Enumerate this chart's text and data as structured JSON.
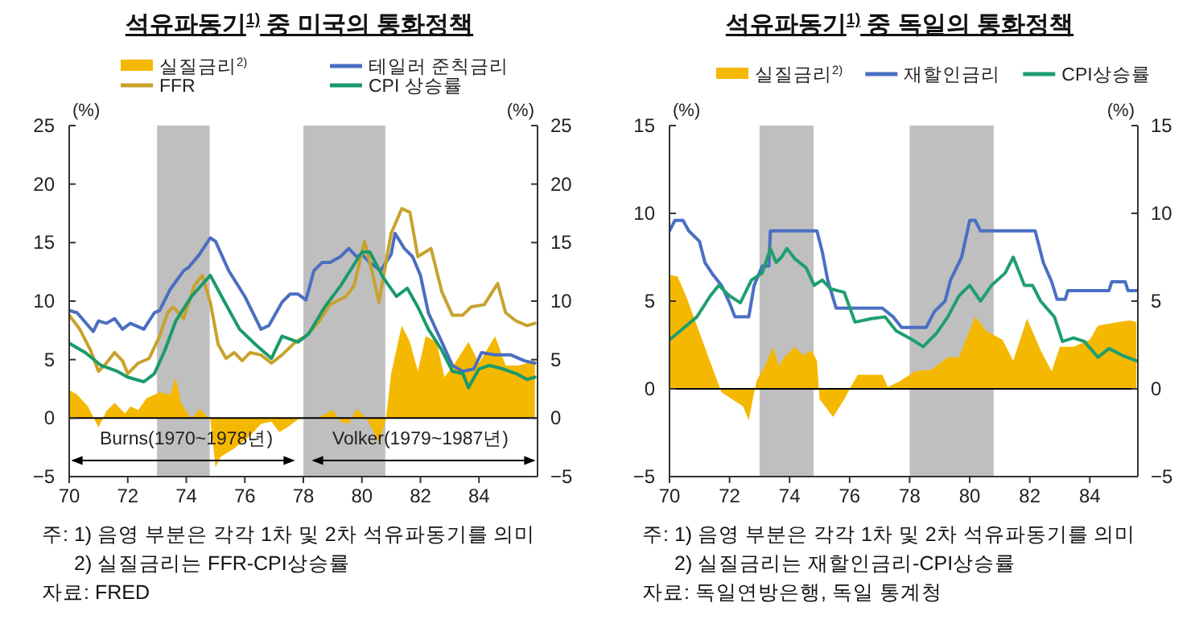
{
  "chart_data": [
    {
      "type": "line",
      "title": "석유파동기$^{1)}$ 중 미국의 통화정책",
      "ylabel": "(%)",
      "y2label": "(%)",
      "xlim": [
        70,
        86
      ],
      "xticks": [
        70,
        72,
        74,
        76,
        78,
        80,
        82,
        84
      ],
      "ylim": [
        -5,
        25
      ],
      "yticks": [
        {
          "value": -5,
          "label": "−5"
        },
        0,
        5,
        10,
        15,
        20,
        25
      ],
      "y2lim": [
        -5,
        25
      ],
      "y2ticks": [
        {
          "value": -5,
          "label": "−5"
        },
        0,
        5,
        10,
        15,
        20,
        25
      ],
      "grid": false,
      "legend": "top",
      "bands": [
        {
          "axis": "x",
          "from": 73,
          "to": 74.8,
          "color": "#bfbfbf"
        },
        {
          "axis": "x",
          "from": 78,
          "to": 80.8,
          "color": "#bfbfbf"
        }
      ],
      "ref_lines": [
        {
          "axis": "y",
          "value": 0,
          "color": "#000000"
        }
      ],
      "series": [
        {
          "name": "실질금리$^{2)}$",
          "type": "area",
          "color": "#f5b800",
          "x": [
            70.0,
            70.27,
            70.64,
            71.0,
            71.27,
            71.55,
            71.91,
            72.09,
            72.36,
            72.64,
            73.09,
            73.45,
            73.64,
            73.82,
            74.18,
            74.45,
            74.82,
            75.0,
            75.18,
            75.64,
            76.18,
            76.55,
            76.91,
            77.18,
            77.45,
            77.82,
            78.55,
            79.0,
            79.27,
            79.55,
            79.82,
            80.18,
            80.58,
            80.82,
            81.0,
            81.36,
            81.64,
            81.91,
            82.18,
            82.55,
            82.82,
            83.18,
            83.64,
            84.0,
            84.55,
            84.91,
            85.36,
            85.91
          ],
          "values": [
            2.4,
            2.0,
            1.0,
            -0.8,
            0.6,
            1.3,
            0.4,
            1.0,
            0.7,
            1.7,
            2.2,
            2.0,
            3.5,
            1.3,
            -0.1,
            0.8,
            -0.1,
            -4.2,
            -3.3,
            -2.6,
            -1.5,
            -0.5,
            -0.3,
            -1.2,
            -0.8,
            -0.1,
            0.1,
            0.7,
            -0.3,
            -0.5,
            0.8,
            -0.1,
            -2.1,
            -0.1,
            3.8,
            7.9,
            6.5,
            4.0,
            7.0,
            6.5,
            3.5,
            4.7,
            6.5,
            4.7,
            7.0,
            4.5,
            4.5,
            4.9
          ]
        },
        {
          "name": "테일러 준칙금리",
          "type": "line",
          "color": "#4a6fc0",
          "x": [
            70.0,
            70.27,
            70.82,
            71.0,
            71.27,
            71.55,
            71.82,
            72.09,
            72.55,
            72.91,
            73.09,
            73.45,
            73.91,
            74.09,
            74.45,
            74.82,
            75.0,
            75.45,
            76.0,
            76.55,
            76.82,
            77.27,
            77.55,
            77.82,
            78.09,
            78.36,
            78.64,
            78.91,
            79.27,
            79.55,
            79.82,
            80.0,
            80.27,
            80.64,
            81.0,
            81.13,
            81.45,
            81.73,
            82.0,
            82.27,
            82.73,
            83.09,
            83.45,
            83.82,
            84.09,
            84.55,
            85.09,
            85.55,
            85.91
          ],
          "values": [
            9.2,
            9.0,
            7.4,
            8.3,
            8.1,
            8.5,
            7.6,
            8.1,
            7.6,
            9.0,
            9.2,
            11.0,
            12.6,
            12.9,
            14.0,
            15.4,
            15.1,
            12.6,
            10.4,
            7.6,
            7.9,
            9.9,
            10.6,
            10.6,
            10.1,
            12.6,
            13.3,
            13.3,
            13.8,
            14.5,
            13.8,
            14.0,
            13.3,
            12.6,
            14.0,
            15.8,
            14.5,
            13.8,
            12.2,
            9.0,
            6.5,
            4.5,
            4.0,
            4.2,
            5.6,
            5.4,
            5.4,
            4.9,
            4.7
          ]
        },
        {
          "name": "FFR",
          "type": "line",
          "color": "#c8a22c",
          "x": [
            70.0,
            70.36,
            70.73,
            71.0,
            71.27,
            71.55,
            71.82,
            72.0,
            72.36,
            72.73,
            73.09,
            73.36,
            73.55,
            73.91,
            74.27,
            74.55,
            74.82,
            75.09,
            75.36,
            75.64,
            75.91,
            76.18,
            76.55,
            76.91,
            77.27,
            77.73,
            78.09,
            78.55,
            78.91,
            79.45,
            79.73,
            80.09,
            80.36,
            80.58,
            80.82,
            81.0,
            81.36,
            81.64,
            81.91,
            82.36,
            82.73,
            83.09,
            83.45,
            83.73,
            84.18,
            84.64,
            84.91,
            85.27,
            85.64,
            85.91
          ],
          "values": [
            8.8,
            7.6,
            5.8,
            4.0,
            4.7,
            5.6,
            4.9,
            3.8,
            4.7,
            5.1,
            7.0,
            9.0,
            9.5,
            8.5,
            11.3,
            12.2,
            9.9,
            6.3,
            5.1,
            5.6,
            4.9,
            5.6,
            5.4,
            4.7,
            5.4,
            6.5,
            7.0,
            8.3,
            9.7,
            10.4,
            11.3,
            15.1,
            12.4,
            9.9,
            13.3,
            15.8,
            17.9,
            17.6,
            13.8,
            14.5,
            10.8,
            8.8,
            8.8,
            9.5,
            9.7,
            11.5,
            9.0,
            8.3,
            7.9,
            8.1
          ]
        },
        {
          "name": "CPI 상승률",
          "type": "line",
          "color": "#1a9a6a",
          "x": [
            70.0,
            70.55,
            71.09,
            71.64,
            72.0,
            72.55,
            72.91,
            73.27,
            73.64,
            74.18,
            74.82,
            75.27,
            75.82,
            76.36,
            76.91,
            77.27,
            77.82,
            78.18,
            78.73,
            79.27,
            80.0,
            80.27,
            80.73,
            81.18,
            81.55,
            81.91,
            82.27,
            82.73,
            83.09,
            83.45,
            83.64,
            84.0,
            84.36,
            84.82,
            85.27,
            85.64,
            85.91
          ],
          "values": [
            6.4,
            5.6,
            4.5,
            4.0,
            3.5,
            3.1,
            3.8,
            5.8,
            8.3,
            10.4,
            12.2,
            10.1,
            7.6,
            6.3,
            5.1,
            7.0,
            6.5,
            7.2,
            9.5,
            11.3,
            14.2,
            14.2,
            12.0,
            10.4,
            11.1,
            9.5,
            7.6,
            5.8,
            4.0,
            3.8,
            2.6,
            4.2,
            4.5,
            4.2,
            3.8,
            3.3,
            3.5
          ]
        }
      ],
      "annotations": [
        {
          "text": "Burns(1970~1978년)"
        },
        {
          "text": "Volker(1979~1987년)"
        },
        "주: 1) 음영 부분은 각각 1차 및 2차 석유파동기를 의미",
        "2) 실질금리는 FFR-CPI상승률",
        "자료: FRED"
      ]
    },
    {
      "type": "line",
      "title": "석유파동기$^{1)}$ 중 독일의 통화정책",
      "ylabel": "(%)",
      "y2label": "(%)",
      "xlim": [
        70,
        85.6
      ],
      "xticks": [
        70,
        72,
        74,
        76,
        78,
        80,
        82,
        84
      ],
      "ylim": [
        -5,
        15
      ],
      "yticks": [
        {
          "value": -5,
          "label": "−5"
        },
        0,
        5,
        10,
        15
      ],
      "y2lim": [
        -5,
        15
      ],
      "y2ticks": [
        {
          "value": -5,
          "label": "−5"
        },
        0,
        5,
        10,
        15
      ],
      "grid": false,
      "legend": "top",
      "bands": [
        {
          "axis": "x",
          "from": 73,
          "to": 74.8,
          "color": "#bfbfbf"
        },
        {
          "axis": "x",
          "from": 78,
          "to": 80.8,
          "color": "#bfbfbf"
        }
      ],
      "ref_lines": [
        {
          "axis": "y",
          "value": 0,
          "color": "#000000"
        }
      ],
      "series": [
        {
          "name": "실질금리$^{2)}$",
          "type": "area",
          "color": "#f5b800",
          "x": [
            70.0,
            70.27,
            70.55,
            71.0,
            71.45,
            71.73,
            72.09,
            72.45,
            72.64,
            72.82,
            72.91,
            73.18,
            73.45,
            73.64,
            73.82,
            74.18,
            74.45,
            74.73,
            74.91,
            75.0,
            75.45,
            75.82,
            76.0,
            76.27,
            76.64,
            77.09,
            77.27,
            77.64,
            78.18,
            78.73,
            79.27,
            79.64,
            80.18,
            80.55,
            81.09,
            81.45,
            81.91,
            82.36,
            82.73,
            83.0,
            83.45,
            84.0,
            84.27,
            84.91,
            85.36,
            85.55
          ],
          "values": [
            6.5,
            6.4,
            5.3,
            3.2,
            1.1,
            -0.2,
            -0.6,
            -1.0,
            -1.8,
            -0.2,
            0.5,
            1.3,
            2.4,
            1.3,
            1.8,
            2.4,
            1.9,
            2.2,
            1.6,
            -0.6,
            -1.6,
            -0.6,
            0,
            0.8,
            0.8,
            0.8,
            0.1,
            0.4,
            1.0,
            1.1,
            1.8,
            1.8,
            4.1,
            3.3,
            2.8,
            1.6,
            4.0,
            2.2,
            1.0,
            2.4,
            2.4,
            2.8,
            3.6,
            3.8,
            3.9,
            3.8
          ]
        },
        {
          "name": "재할인금리",
          "type": "line",
          "color": "#4a6fc4",
          "x": [
            70.0,
            70.18,
            70.45,
            70.64,
            71.0,
            71.18,
            71.45,
            71.73,
            72.0,
            72.18,
            72.64,
            72.82,
            73.09,
            73.31,
            73.36,
            74.91,
            75.09,
            75.27,
            75.55,
            77.09,
            77.45,
            77.73,
            78.55,
            78.82,
            79.18,
            79.36,
            79.73,
            80.0,
            80.18,
            80.36,
            82.18,
            82.45,
            82.73,
            82.91,
            83.18,
            83.27,
            84.64,
            84.73,
            85.18,
            85.27,
            85.55
          ],
          "values": [
            9.0,
            9.6,
            9.6,
            9.0,
            8.4,
            7.2,
            6.5,
            5.9,
            4.9,
            4.1,
            4.1,
            5.9,
            7.0,
            7.0,
            9.0,
            9.0,
            7.8,
            6.2,
            4.6,
            4.6,
            4.1,
            3.5,
            3.5,
            4.4,
            5.0,
            6.2,
            7.5,
            9.6,
            9.6,
            9.0,
            9.0,
            7.2,
            6.1,
            5.1,
            5.1,
            5.6,
            5.6,
            6.1,
            6.1,
            5.6,
            5.6
          ]
        },
        {
          "name": "CPI상승률",
          "type": "line",
          "color": "#1f9e6f",
          "x": [
            70.0,
            70.36,
            70.91,
            71.36,
            71.64,
            72.0,
            72.36,
            72.73,
            73.09,
            73.36,
            73.55,
            73.73,
            73.91,
            74.18,
            74.55,
            74.82,
            75.09,
            75.36,
            75.82,
            76.18,
            76.73,
            77.18,
            77.55,
            78.09,
            78.45,
            78.91,
            79.27,
            79.64,
            80.0,
            80.36,
            80.73,
            81.18,
            81.45,
            81.82,
            82.09,
            82.36,
            82.82,
            83.09,
            83.45,
            83.82,
            84.27,
            84.64,
            85.09,
            85.55
          ],
          "values": [
            2.8,
            3.3,
            4.1,
            5.3,
            5.9,
            5.3,
            4.9,
            6.2,
            6.6,
            8.0,
            7.2,
            7.5,
            8.0,
            7.4,
            6.9,
            5.9,
            6.2,
            5.7,
            5.5,
            3.8,
            4.0,
            4.1,
            3.3,
            2.8,
            2.4,
            3.2,
            4.1,
            5.3,
            5.9,
            5.0,
            5.9,
            6.6,
            7.5,
            5.9,
            5.9,
            5.0,
            4.1,
            2.7,
            2.9,
            2.7,
            1.8,
            2.3,
            1.9,
            1.6
          ]
        }
      ],
      "annotations": [
        "주: 1) 음영 부분은 각각 1차 및 2차 석유파동기를 의미",
        "2) 실질금리는 재할인금리-CPI상승률",
        "자료: 독일연방은행, 독일 통계청"
      ]
    }
  ]
}
